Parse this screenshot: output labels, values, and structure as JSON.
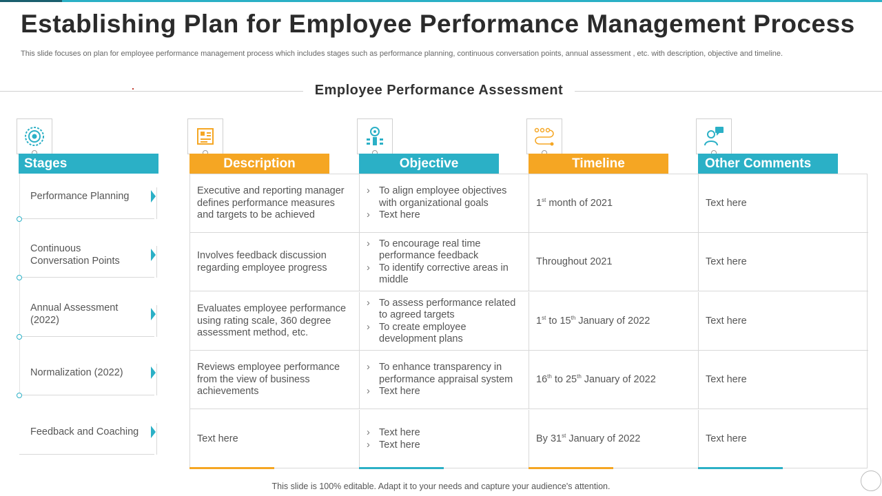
{
  "title": "Establishing Plan for Employee Performance Management Process",
  "subtitle": "This slide focuses on plan for employee performance management process which includes stages such as performance planning, continuous conversation points, annual assessment , etc. with description, objective and timeline.",
  "section_title": "Employee Performance Assessment",
  "colors": {
    "teal": "#2bb0c6",
    "orange": "#f5a623"
  },
  "columns": [
    {
      "label": "Stages",
      "icon": "target-gear-icon",
      "color": "#2bb0c6"
    },
    {
      "label": "Description",
      "icon": "document-chart-icon",
      "color": "#f5a623"
    },
    {
      "label": "Objective",
      "icon": "target-person-icon",
      "color": "#2bb0c6"
    },
    {
      "label": "Timeline",
      "icon": "timeline-path-icon",
      "color": "#f5a623"
    },
    {
      "label": "Other Comments",
      "icon": "user-chat-icon",
      "color": "#2bb0c6"
    }
  ],
  "stages": [
    {
      "label": "Performance Planning"
    },
    {
      "label": "Continuous Conversation Points"
    },
    {
      "label": "Annual Assessment (2022)"
    },
    {
      "label": "Normalization (2022)"
    },
    {
      "label": "Feedback and Coaching"
    }
  ],
  "rows": [
    {
      "description": "Executive and reporting manager defines performance measures and targets to be achieved",
      "objectives": [
        "To align employee objectives with organizational goals",
        "Text here"
      ],
      "timeline": {
        "a": "1",
        "a_sup": "st",
        "b": " month of 2021"
      },
      "comment": "Text here"
    },
    {
      "description": "Involves feedback discussion regarding employee progress",
      "objectives": [
        "To encourage real time performance feedback",
        "To identify corrective areas in middle"
      ],
      "timeline": {
        "a": "Throughout 2021"
      },
      "comment": "Text here"
    },
    {
      "description": "Evaluates employee performance using rating scale, 360 degree assessment method, etc.",
      "objectives": [
        "To assess performance related to agreed targets",
        "To create employee development plans"
      ],
      "timeline": {
        "a": "1",
        "a_sup": "st",
        "b": " to 15",
        "b_sup": "th",
        "c": " January of 2022"
      },
      "comment": "Text here"
    },
    {
      "description": "Reviews employee performance from the view of business achievements",
      "objectives": [
        "To enhance transparency in performance appraisal system",
        "Text here"
      ],
      "timeline": {
        "a": "16",
        "a_sup": "th",
        "b": " to 25",
        "b_sup": "th",
        "c": " January of 2022"
      },
      "comment": "Text here"
    },
    {
      "description": "Text here",
      "objectives": [
        "Text here",
        "Text here"
      ],
      "timeline": {
        "a": "By 31",
        "a_sup": "st",
        "b": " January of 2022"
      },
      "comment": "Text here"
    }
  ],
  "footer": "This slide is 100% editable. Adapt it to your needs and capture your audience's attention."
}
